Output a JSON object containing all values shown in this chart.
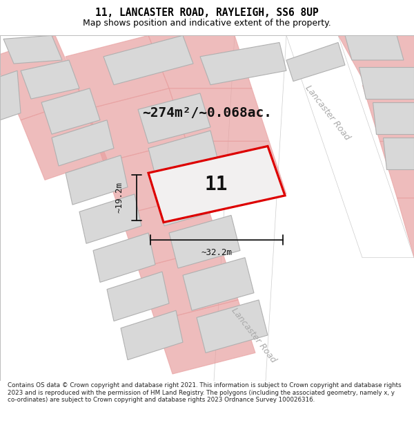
{
  "title_line1": "11, LANCASTER ROAD, RAYLEIGH, SS6 8UP",
  "title_line2": "Map shows position and indicative extent of the property.",
  "footer_text": "Contains OS data © Crown copyright and database right 2021. This information is subject to Crown copyright and database rights 2023 and is reproduced with the permission of HM Land Registry. The polygons (including the associated geometry, namely x, y co-ordinates) are subject to Crown copyright and database rights 2023 Ordnance Survey 100026316.",
  "area_label": "~274m²/~0.068ac.",
  "width_label": "~32.2m",
  "height_label": "~19.2m",
  "number_label": "11",
  "map_bg": "#f2f0f0",
  "road_color": "#ffffff",
  "building_fill": "#d8d8d8",
  "building_edge": "#b0b0b0",
  "plot_fill": "#f2f0f0",
  "plot_edge": "#dd0000",
  "boundary_edge": "#e8a0a0",
  "dim_color": "#111111",
  "road_label_color": "#aaaaaa",
  "title_fontsize": 10.5,
  "subtitle_fontsize": 9,
  "area_fontsize": 14,
  "number_fontsize": 20,
  "dim_fontsize": 9,
  "road_fontsize": 9,
  "footer_fontsize": 6.3
}
